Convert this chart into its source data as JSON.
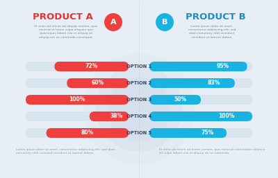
{
  "bg_color": "#e8eef5",
  "title_a": "PRODUCT A",
  "title_b": "PRODUCT B",
  "icon_a": "A",
  "icon_b": "B",
  "options": [
    "OPTION 1",
    "OPTION 2",
    "OPTION 3",
    "OPTION 4",
    "OPTION 5"
  ],
  "values_a": [
    72,
    60,
    100,
    38,
    80
  ],
  "values_b": [
    95,
    83,
    50,
    100,
    75
  ],
  "color_a_main": "#ee3e3e",
  "color_b_main": "#1ab2e0",
  "bar_bg": "#d8e4ee",
  "title_color_a": "#e83030",
  "title_color_b": "#1a90c0",
  "label_color": "#2a3a5a",
  "option_color": "#334466",
  "footer_color": "#8899aa",
  "desc_color": "#778899",
  "circle_color": "#c8d8e8",
  "white": "#ffffff",
  "desc_text_a": "Ut enim ad minim ad aliquip veniam, quis\nnostrud et lorem culpa aliquam que\nquaesiquis labore nisi et aliquip sit\naliquip are no commodo consequat.",
  "desc_text_b": "Lorem ipsum dolor sit amet,\nconsectetur adipiscing elit, sed\ndiam nonummy nibh tincidunt\ntincidunt ut laoreet dolore.",
  "footer_text_a": "Lorem ipsum dolor sit amet, consectetur adipiscing elit, sed diam\nnonummy nibh euismod tincidunt ut laoreet dolore.",
  "footer_text_b": "Et enim ad minim ad lorem veniam, quis nostrud exercitation ullamco\nsit culpa labore nisi et aliquip sit no commodo."
}
